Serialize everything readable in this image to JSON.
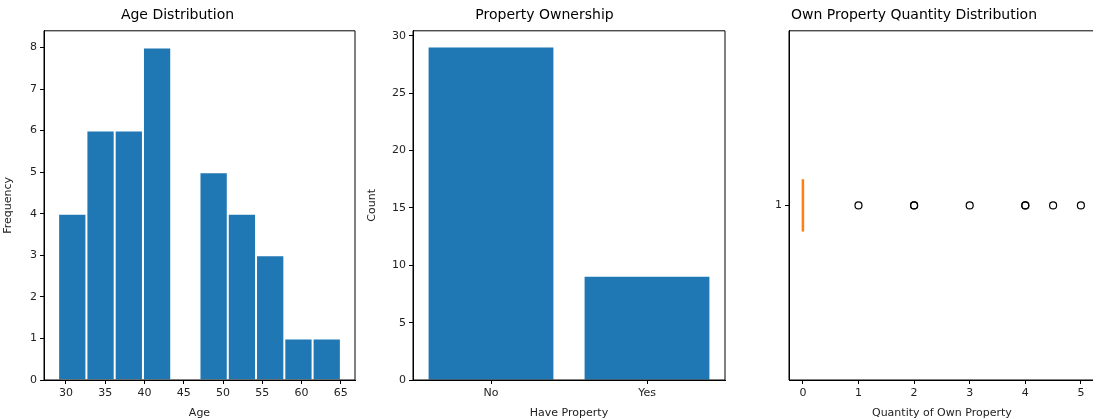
{
  "chart_data": [
    {
      "type": "histogram",
      "title": "Age Distribution",
      "xlabel": "Age",
      "ylabel": "Frequency",
      "color": "#1f77b4",
      "bins": [
        29,
        32.6,
        36.2,
        39.8,
        43.4,
        47,
        50.6,
        54.2,
        57.8,
        61.4,
        65
      ],
      "values": [
        4,
        6,
        6,
        8,
        0,
        5,
        4,
        3,
        1,
        1
      ],
      "xlim": [
        27.2,
        66.8
      ],
      "xticks": [
        30,
        35,
        40,
        45,
        50,
        55,
        60,
        65
      ],
      "ylim": [
        0,
        8.4
      ],
      "yticks": [
        0,
        1,
        2,
        3,
        4,
        5,
        6,
        7,
        8
      ],
      "grid": false,
      "legend": false
    },
    {
      "type": "bar",
      "title": "Property Ownership",
      "xlabel": "Have Property",
      "ylabel": "Count",
      "color": "#1f77b4",
      "categories": [
        "No",
        "Yes"
      ],
      "values": [
        29,
        9
      ],
      "ylim": [
        0,
        30.45
      ],
      "yticks": [
        0,
        5,
        10,
        15,
        20,
        25,
        30
      ],
      "grid": false,
      "legend": false
    },
    {
      "type": "box",
      "title": "Own Property Quantity Distribution",
      "xlabel": "Quantity of Own Property",
      "orientation": "horizontal",
      "color": "#ff7f0e",
      "marker": "circle",
      "categories": [
        "1"
      ],
      "boxes": [
        {
          "low": 0,
          "q1": 0,
          "median": 0,
          "q3": 0,
          "high": 0,
          "outliers": [
            1,
            2,
            2,
            3,
            4,
            4,
            4.5,
            5
          ]
        }
      ],
      "xlim": [
        -0.25,
        5.25
      ],
      "xticks": [
        0,
        1,
        2,
        3,
        4,
        5
      ],
      "grid": false,
      "legend": false
    }
  ]
}
